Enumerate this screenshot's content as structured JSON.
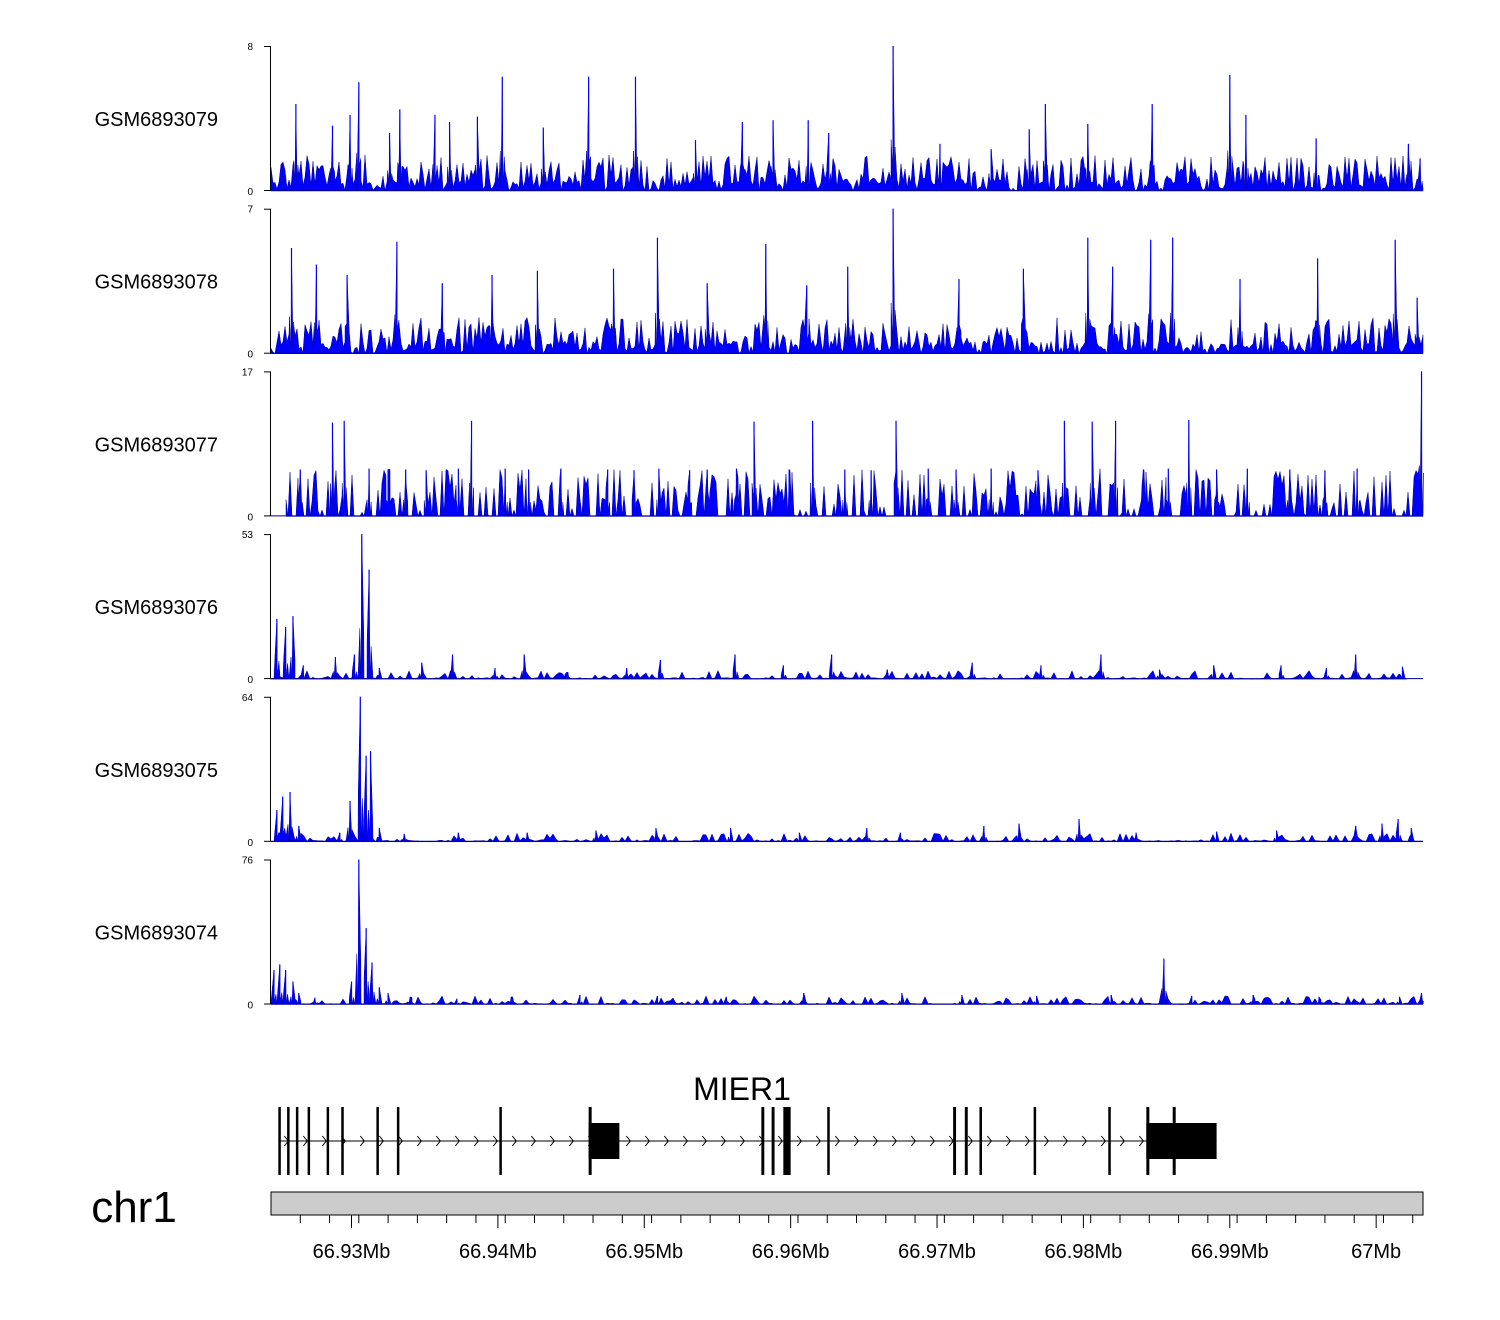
{
  "chart_data": {
    "type": "area",
    "title": "",
    "chromosome": "chr1",
    "x_unit": "Mb",
    "xlim": [
      66.9245,
      67.0032
    ],
    "series_color": "#0000ff",
    "tracks": [
      {
        "name": "GSM6893079",
        "ymax": 8,
        "peaks": [
          [
            66.9262,
            4.8
          ],
          [
            66.9287,
            3.6
          ],
          [
            66.9299,
            4.2
          ],
          [
            66.9305,
            6.0
          ],
          [
            66.9326,
            3.2
          ],
          [
            66.9333,
            4.5
          ],
          [
            66.9357,
            4.2
          ],
          [
            66.9367,
            3.8
          ],
          [
            66.9386,
            4.1
          ],
          [
            66.9403,
            6.3
          ],
          [
            66.9431,
            3.5
          ],
          [
            66.9462,
            6.3
          ],
          [
            66.9494,
            6.3
          ],
          [
            66.9535,
            2.8
          ],
          [
            66.9567,
            3.8
          ],
          [
            66.9588,
            3.9
          ],
          [
            66.9612,
            3.9
          ],
          [
            66.9626,
            3.2
          ],
          [
            66.967,
            8.1
          ],
          [
            66.9702,
            2.6
          ],
          [
            66.9737,
            2.3
          ],
          [
            66.9763,
            3.4
          ],
          [
            66.9774,
            4.8
          ],
          [
            66.9803,
            3.7
          ],
          [
            66.9847,
            4.8
          ],
          [
            66.99,
            6.4
          ],
          [
            66.9911,
            4.2
          ],
          [
            66.9959,
            2.9
          ],
          [
            67.0022,
            2.6
          ],
          [
            67.003,
            1.8
          ]
        ]
      },
      {
        "name": "GSM6893078",
        "ymax": 7,
        "peaks": [
          [
            66.9259,
            5.1
          ],
          [
            66.9276,
            4.3
          ],
          [
            66.9297,
            3.8
          ],
          [
            66.9331,
            5.4
          ],
          [
            66.9362,
            3.4
          ],
          [
            66.9396,
            3.8
          ],
          [
            66.9427,
            4.0
          ],
          [
            66.9479,
            4.1
          ],
          [
            66.9509,
            5.6
          ],
          [
            66.9543,
            3.4
          ],
          [
            66.9583,
            5.3
          ],
          [
            66.9611,
            3.3
          ],
          [
            66.9639,
            4.2
          ],
          [
            66.967,
            7.0
          ],
          [
            66.9715,
            3.6
          ],
          [
            66.9759,
            4.1
          ],
          [
            66.9803,
            5.6
          ],
          [
            66.982,
            4.2
          ],
          [
            66.9846,
            5.5
          ],
          [
            66.9861,
            5.6
          ],
          [
            66.9907,
            3.6
          ],
          [
            66.996,
            4.6
          ],
          [
            67.0013,
            5.5
          ],
          [
            67.0028,
            2.7
          ]
        ]
      },
      {
        "name": "GSM6893077",
        "ymax": 17,
        "peaks": [
          [
            66.9265,
            5.5
          ],
          [
            66.9287,
            11.0
          ],
          [
            66.9295,
            11.2
          ],
          [
            66.9312,
            5.6
          ],
          [
            66.9325,
            5.5
          ],
          [
            66.9337,
            5.5
          ],
          [
            66.9351,
            5.4
          ],
          [
            66.9373,
            5.6
          ],
          [
            66.9382,
            11.2
          ],
          [
            66.9405,
            5.6
          ],
          [
            66.9421,
            5.5
          ],
          [
            66.9443,
            5.6
          ],
          [
            66.9475,
            5.5
          ],
          [
            66.9493,
            5.4
          ],
          [
            66.951,
            5.6
          ],
          [
            66.9531,
            5.4
          ],
          [
            66.9543,
            5.5
          ],
          [
            66.9563,
            5.6
          ],
          [
            66.9575,
            11.1
          ],
          [
            66.9599,
            5.5
          ],
          [
            66.9615,
            11.2
          ],
          [
            66.9637,
            5.5
          ],
          [
            66.9655,
            5.4
          ],
          [
            66.9672,
            11.2
          ],
          [
            66.9694,
            5.6
          ],
          [
            66.9713,
            5.5
          ],
          [
            66.9737,
            5.6
          ],
          [
            66.9769,
            5.4
          ],
          [
            66.9787,
            11.2
          ],
          [
            66.9806,
            11.1
          ],
          [
            66.9822,
            11.2
          ],
          [
            66.9841,
            5.5
          ],
          [
            66.9858,
            5.6
          ],
          [
            66.9872,
            11.3
          ],
          [
            66.9891,
            5.5
          ],
          [
            66.9912,
            5.6
          ],
          [
            66.9941,
            5.5
          ],
          [
            66.9965,
            5.4
          ],
          [
            66.9987,
            5.6
          ],
          [
            67.0031,
            17.0
          ]
        ]
      },
      {
        "name": "GSM6893076",
        "ymax": 53,
        "peaks": [
          [
            66.9249,
            22.0
          ],
          [
            66.9255,
            19.0
          ],
          [
            66.926,
            23.0
          ],
          [
            66.9267,
            5.0
          ],
          [
            66.9289,
            8.0
          ],
          [
            66.9302,
            9.0
          ],
          [
            66.9307,
            53.0
          ],
          [
            66.9312,
            40.0
          ],
          [
            66.9319,
            4.0
          ],
          [
            66.9348,
            6.0
          ],
          [
            66.9369,
            9.0
          ],
          [
            66.9398,
            4.0
          ],
          [
            66.9418,
            9.0
          ],
          [
            66.9447,
            2.5
          ],
          [
            66.9488,
            4.0
          ],
          [
            66.9511,
            7.0
          ],
          [
            66.9562,
            9.0
          ],
          [
            66.9595,
            5.0
          ],
          [
            66.9628,
            9.0
          ],
          [
            66.9666,
            3.5
          ],
          [
            66.9724,
            6.0
          ],
          [
            66.9771,
            5.0
          ],
          [
            66.9812,
            9.0
          ],
          [
            66.9852,
            3.5
          ],
          [
            66.9889,
            5.0
          ],
          [
            66.9935,
            5.0
          ],
          [
            66.9966,
            4.0
          ],
          [
            66.9986,
            9.0
          ],
          [
            67.0018,
            4.5
          ]
        ]
      },
      {
        "name": "GSM6893075",
        "ymax": 64,
        "peaks": [
          [
            66.9249,
            14.0
          ],
          [
            66.9253,
            20.0
          ],
          [
            66.9258,
            22.0
          ],
          [
            66.9264,
            7.0
          ],
          [
            66.9292,
            4.0
          ],
          [
            66.9299,
            18.0
          ],
          [
            66.9306,
            64.0
          ],
          [
            66.931,
            38.0
          ],
          [
            66.9313,
            40.0
          ],
          [
            66.9319,
            6.0
          ],
          [
            66.9336,
            3.5
          ],
          [
            66.9373,
            4.0
          ],
          [
            66.942,
            4.0
          ],
          [
            66.9467,
            5.0
          ],
          [
            66.9508,
            6.0
          ],
          [
            66.9559,
            6.0
          ],
          [
            66.9606,
            4.0
          ],
          [
            66.9652,
            6.0
          ],
          [
            66.9675,
            4.0
          ],
          [
            66.9732,
            7.0
          ],
          [
            66.9756,
            8.0
          ],
          [
            66.9797,
            10.0
          ],
          [
            66.9836,
            4.0
          ],
          [
            66.9891,
            4.5
          ],
          [
            66.9932,
            5.0
          ],
          [
            66.9986,
            7.0
          ],
          [
            67.0004,
            8.0
          ],
          [
            67.0015,
            10.0
          ],
          [
            67.0024,
            6.0
          ]
        ]
      },
      {
        "name": "GSM6893074",
        "ymax": 76,
        "peaks": [
          [
            66.9247,
            18.0
          ],
          [
            66.9251,
            21.0
          ],
          [
            66.9255,
            18.0
          ],
          [
            66.926,
            12.0
          ],
          [
            66.9264,
            6.0
          ],
          [
            66.9275,
            3.5
          ],
          [
            66.93,
            12.0
          ],
          [
            66.9305,
            76.0
          ],
          [
            66.931,
            40.0
          ],
          [
            66.9314,
            22.0
          ],
          [
            66.9319,
            9.0
          ],
          [
            66.9325,
            6.0
          ],
          [
            66.934,
            4.0
          ],
          [
            66.9372,
            3.0
          ],
          [
            66.941,
            4.0
          ],
          [
            66.9456,
            5.0
          ],
          [
            66.9509,
            4.5
          ],
          [
            66.9556,
            4.0
          ],
          [
            66.9609,
            6.0
          ],
          [
            66.9676,
            6.0
          ],
          [
            66.9717,
            5.0
          ],
          [
            66.9768,
            4.5
          ],
          [
            66.9819,
            5.0
          ],
          [
            66.9855,
            24.0
          ],
          [
            66.9874,
            4.5
          ],
          [
            66.9916,
            5.0
          ],
          [
            66.9961,
            4.0
          ],
          [
            67.0016,
            4.0
          ],
          [
            67.0031,
            6.0
          ]
        ]
      }
    ],
    "gene": {
      "name": "MIER1",
      "strand": "+",
      "transcript": [
        66.925,
        66.9891
      ],
      "exons": [
        [
          66.925,
          66.9251
        ],
        [
          66.9256,
          66.9257
        ],
        [
          66.9262,
          66.9263
        ],
        [
          66.927,
          66.9271
        ],
        [
          66.9283,
          66.9284
        ],
        [
          66.9293,
          66.9294
        ],
        [
          66.9317,
          66.9318
        ],
        [
          66.9331,
          66.9332
        ],
        [
          66.9401,
          66.9402
        ],
        [
          66.9462,
          66.9483
        ],
        [
          66.958,
          66.9582
        ],
        [
          66.9587,
          66.9589
        ],
        [
          66.9595,
          66.96
        ],
        [
          66.9625,
          66.9626
        ],
        [
          66.9711,
          66.9713
        ],
        [
          66.9719,
          66.9721
        ],
        [
          66.9729,
          66.973
        ],
        [
          66.9766,
          66.9767
        ],
        [
          66.9817,
          66.9818
        ],
        [
          66.9843,
          66.9891
        ]
      ]
    },
    "x_ticks": [
      "66.93Mb",
      "66.94Mb",
      "66.95Mb",
      "66.96Mb",
      "66.97Mb",
      "66.98Mb",
      "66.99Mb",
      "67Mb"
    ],
    "x_tick_values": [
      66.93,
      66.94,
      66.95,
      66.96,
      66.97,
      66.98,
      66.99,
      67.0
    ]
  }
}
